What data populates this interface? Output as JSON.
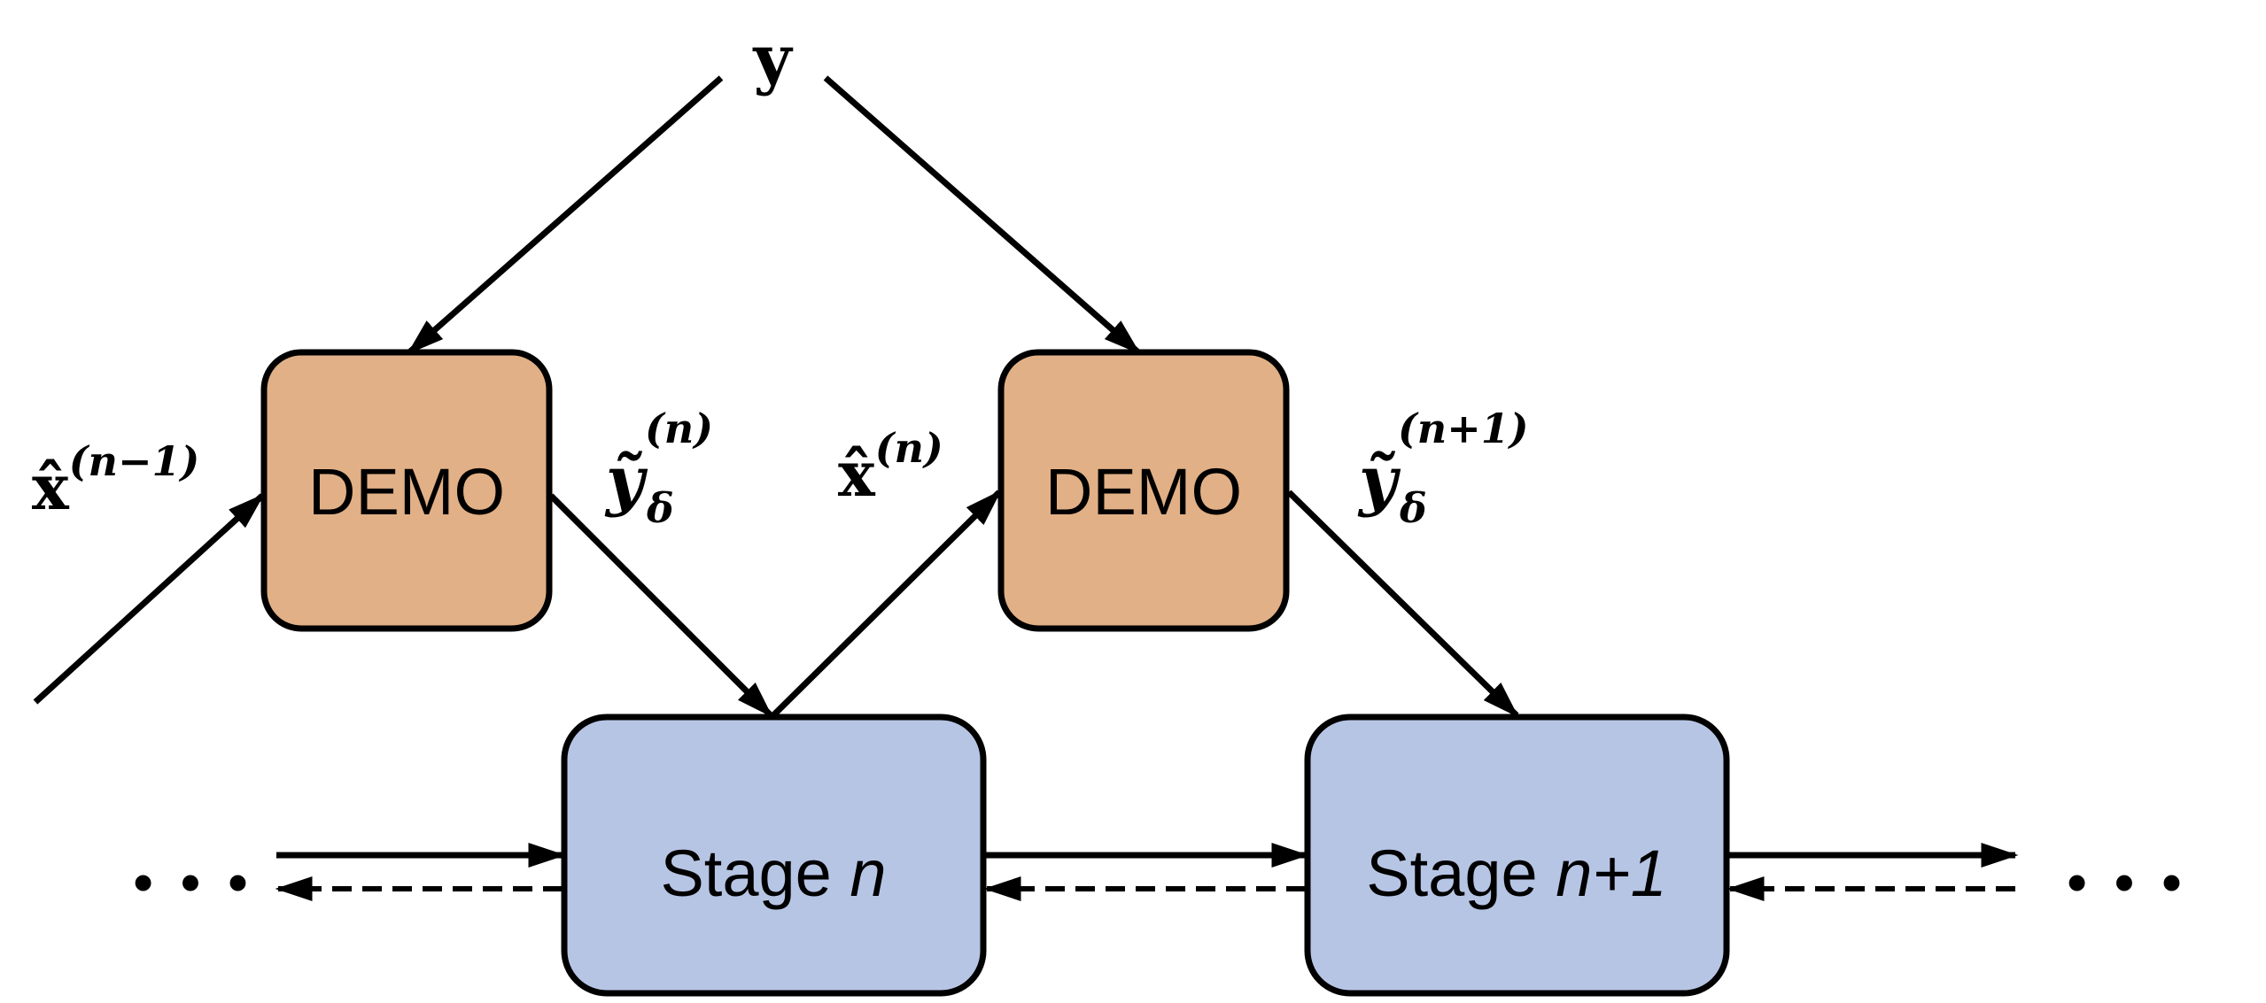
{
  "colors": {
    "demo_fill": "#E2B086",
    "stage_fill": "#B7C5E5",
    "stroke": "#000000"
  },
  "input_label": "y",
  "demo_blocks": [
    {
      "label": "DEMO"
    },
    {
      "label": "DEMO"
    }
  ],
  "stage_blocks": [
    {
      "label_prefix": "Stage ",
      "label_var": "n"
    },
    {
      "label_prefix": "Stage ",
      "label_var": "n+1"
    }
  ],
  "estimate_labels": [
    {
      "base": "x̂",
      "superscript": "(n−1)"
    },
    {
      "base": "x̂",
      "superscript": "(n)"
    }
  ],
  "demo_output_labels": [
    {
      "base": "ỹ",
      "subscript": "δ",
      "superscript": "(n)"
    },
    {
      "base": "ỹ",
      "subscript": "δ",
      "superscript": "(n+1)"
    }
  ],
  "continuation": "..."
}
